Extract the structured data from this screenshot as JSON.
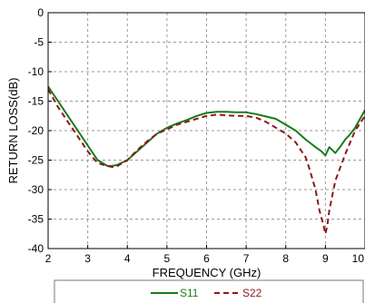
{
  "chart_data": {
    "type": "line",
    "xlabel": "FREQUENCY (GHz)",
    "ylabel": "RETURN LOSS(dB)",
    "xlim": [
      2,
      10
    ],
    "ylim": [
      -40,
      0
    ],
    "xticks": [
      2,
      3,
      4,
      5,
      6,
      7,
      8,
      9,
      10
    ],
    "yticks": [
      0,
      -5,
      -10,
      -15,
      -20,
      -25,
      -30,
      -35,
      -40
    ],
    "grid": true,
    "legend_placement": "bottom",
    "series": [
      {
        "name": "S11",
        "color": "#1a7a1a",
        "style": "solid",
        "x": [
          2.0,
          2.25,
          2.5,
          2.75,
          3.0,
          3.25,
          3.5,
          3.6,
          3.75,
          4.0,
          4.25,
          4.5,
          4.75,
          5.0,
          5.25,
          5.5,
          5.75,
          6.0,
          6.25,
          6.5,
          6.75,
          7.0,
          7.25,
          7.5,
          7.75,
          8.0,
          8.25,
          8.5,
          8.6,
          8.75,
          8.9,
          9.0,
          9.1,
          9.25,
          9.4,
          9.5,
          9.6,
          9.75,
          10.0
        ],
        "y": [
          -12.5,
          -15.0,
          -17.5,
          -20.0,
          -22.5,
          -25.0,
          -26.0,
          -26.0,
          -25.8,
          -25.0,
          -23.5,
          -22.0,
          -20.5,
          -19.5,
          -18.8,
          -18.2,
          -17.5,
          -17.0,
          -16.8,
          -16.8,
          -16.9,
          -16.9,
          -17.2,
          -17.6,
          -18.0,
          -19.0,
          -20.0,
          -21.5,
          -22.0,
          -22.8,
          -23.5,
          -24.2,
          -22.8,
          -23.8,
          -22.5,
          -21.5,
          -20.8,
          -19.5,
          -16.5
        ]
      },
      {
        "name": "S22",
        "color": "#8b1a1a",
        "style": "dashed",
        "x": [
          2.0,
          2.25,
          2.5,
          2.75,
          3.0,
          3.25,
          3.5,
          3.65,
          3.75,
          4.0,
          4.25,
          4.5,
          4.75,
          5.0,
          5.25,
          5.5,
          5.75,
          6.0,
          6.25,
          6.5,
          6.75,
          7.0,
          7.25,
          7.5,
          7.75,
          8.0,
          8.25,
          8.5,
          8.6,
          8.75,
          8.85,
          8.95,
          9.0,
          9.05,
          9.1,
          9.25,
          9.5,
          9.75,
          10.0
        ],
        "y": [
          -13.0,
          -16.0,
          -18.5,
          -21.0,
          -23.5,
          -25.5,
          -26.0,
          -26.2,
          -26.0,
          -25.0,
          -23.3,
          -21.8,
          -20.5,
          -19.8,
          -19.0,
          -18.5,
          -18.0,
          -17.5,
          -17.3,
          -17.4,
          -17.5,
          -17.5,
          -17.8,
          -18.5,
          -19.5,
          -20.5,
          -22.0,
          -24.5,
          -26.5,
          -30.0,
          -33.5,
          -36.0,
          -37.5,
          -36.0,
          -33.5,
          -28.5,
          -24.0,
          -20.0,
          -17.5
        ]
      }
    ]
  }
}
